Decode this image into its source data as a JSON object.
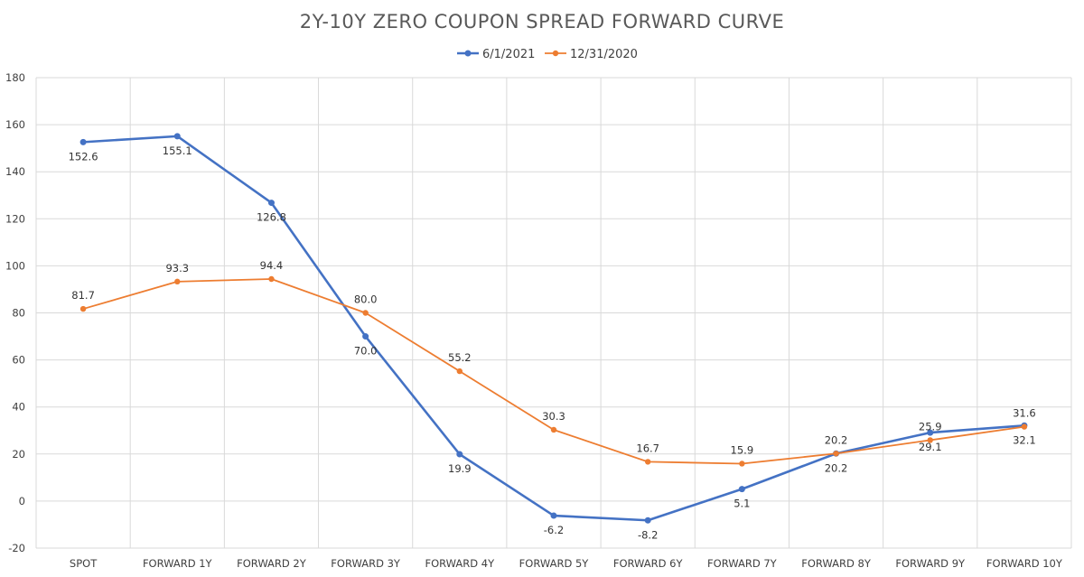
{
  "chart_data": {
    "type": "line",
    "title": "2Y-10Y ZERO COUPON SPREAD FORWARD CURVE",
    "categories": [
      "SPOT",
      "FORWARD 1Y",
      "FORWARD 2Y",
      "FORWARD 3Y",
      "FORWARD 4Y",
      "FORWARD 5Y",
      "FORWARD 6Y",
      "FORWARD 7Y",
      "FORWARD 8Y",
      "FORWARD 9Y",
      "FORWARD 10Y"
    ],
    "series": [
      {
        "name": "6/1/2021",
        "color": "#4472c4",
        "values": [
          152.6,
          155.1,
          126.8,
          70.0,
          19.9,
          -6.2,
          -8.2,
          5.1,
          20.2,
          29.1,
          32.1
        ],
        "labels": [
          "152.6",
          "155.1",
          "126.8",
          "70.0",
          "19.9",
          "-6.2",
          "-8.2",
          "5.1",
          "20.2",
          "29.1",
          "32.1"
        ]
      },
      {
        "name": "12/31/2020",
        "color": "#ed7d31",
        "values": [
          81.7,
          93.3,
          94.4,
          80.0,
          55.2,
          30.3,
          16.7,
          15.9,
          20.2,
          25.9,
          31.6
        ],
        "labels": [
          "81.7",
          "93.3",
          "94.4",
          "80.0",
          "55.2",
          "30.3",
          "16.7",
          "15.9",
          "20.2",
          "25.9",
          "31.6"
        ]
      }
    ],
    "ylim": [
      -20,
      180
    ],
    "yticks": [
      "-20",
      "0",
      "20",
      "40",
      "60",
      "80",
      "100",
      "120",
      "140",
      "160",
      "180"
    ],
    "xlabel": "",
    "ylabel": "",
    "grid": true,
    "legend": "top-center"
  }
}
